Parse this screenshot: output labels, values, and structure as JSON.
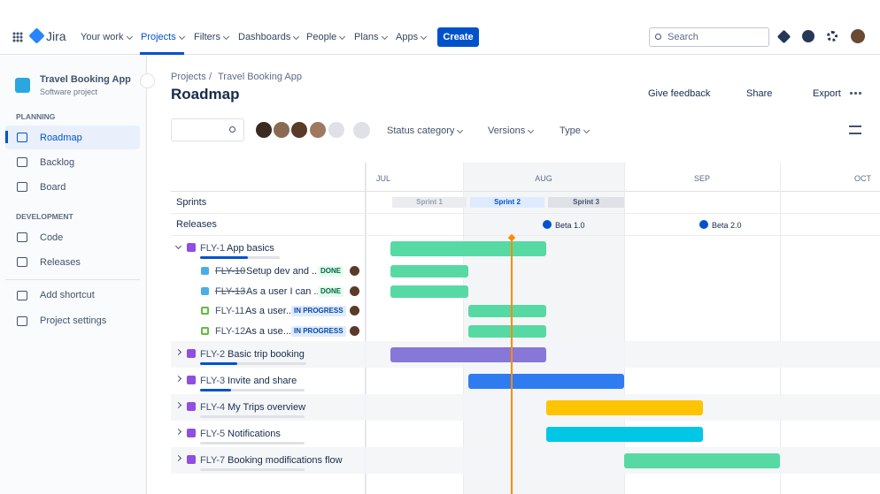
{
  "nav": {
    "logo": "Jira",
    "items": [
      "Your work",
      "Projects",
      "Filters",
      "Dashboards",
      "People",
      "Plans",
      "Apps"
    ],
    "create": "Create",
    "search": "Search"
  },
  "sidebar": {
    "project": "Travel Booking App",
    "project_type": "Software project",
    "sections": [
      {
        "title": "PLANNING",
        "items": [
          "Roadmap",
          "Backlog",
          "Board"
        ]
      },
      {
        "title": "DEVELOPMENT",
        "items": [
          "Code",
          "Releases"
        ]
      }
    ],
    "footer_items": [
      "Add shortcut",
      "Project settings"
    ]
  },
  "header": {
    "breadcrumb": [
      "Projects",
      "Travel Booking App"
    ],
    "separator": "/",
    "title": "Roadmap",
    "actions": [
      "Give feedback",
      "Share",
      "Export"
    ]
  },
  "filters": [
    "Status category",
    "Versions",
    "Type"
  ],
  "timeline": {
    "months": [
      "JUL",
      "AUG",
      "SEP",
      "OCT"
    ],
    "sprints_label": "Sprints",
    "sprints": [
      "Sprint 1",
      "Sprint 2",
      "Sprint 3"
    ],
    "releases_label": "Releases",
    "releases": [
      "Beta 1.0",
      "Beta 2.0"
    ],
    "issues": [
      {
        "key": "FLY-1",
        "name": "App basics",
        "children": [
          {
            "key": "FLY-10",
            "name": "Setup dev and ...",
            "status": "DONE"
          },
          {
            "key": "FLY-13",
            "name": "As a user I can ...",
            "status": "DONE"
          },
          {
            "key": "FLY-11",
            "name": "As a user...",
            "status": "IN PROGRESS"
          },
          {
            "key": "FLY-12",
            "name": "As a use...",
            "status": "IN PROGRESS"
          }
        ]
      },
      {
        "key": "FLY-2",
        "name": "Basic trip booking"
      },
      {
        "key": "FLY-3",
        "name": "Invite and share"
      },
      {
        "key": "FLY-4",
        "name": "My Trips overview"
      },
      {
        "key": "FLY-5",
        "name": "Notifications"
      },
      {
        "key": "FLY-7",
        "name": "Booking modifications flow"
      }
    ]
  }
}
